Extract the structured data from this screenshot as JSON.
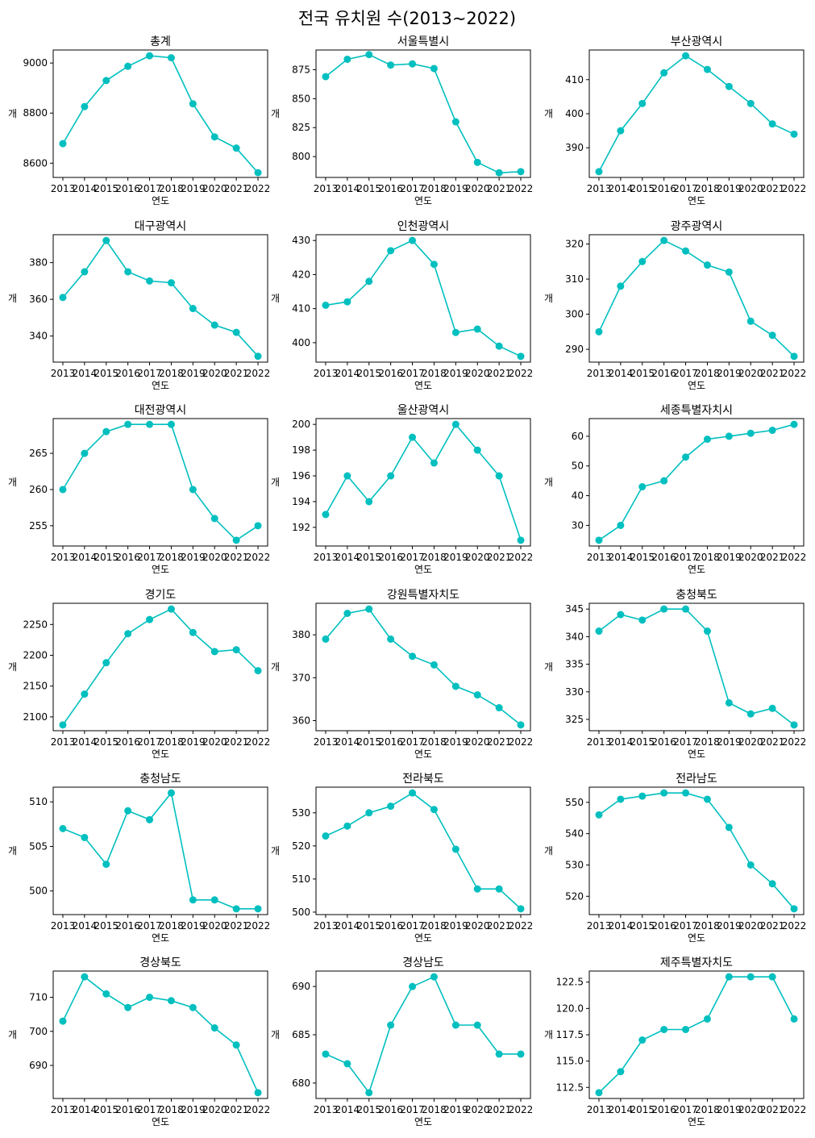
{
  "figure_title": "전국 유치원 수(2013~2022)",
  "colors": {
    "line": "#00BFBF",
    "frame": "#000000",
    "background": "#ffffff"
  },
  "chart_data": [
    {
      "type": "line",
      "title": "총계",
      "xlabel": "연도",
      "ylabel": "개",
      "x": [
        "2013",
        "2014",
        "2015",
        "2016",
        "2017",
        "2018",
        "2019",
        "2020",
        "2021",
        "2022"
      ],
      "values": [
        8678,
        8826,
        8930,
        8987,
        9029,
        9021,
        8837,
        8705,
        8660,
        8562
      ],
      "ylim": [
        8543,
        9052
      ],
      "yticks": [
        8600,
        8800,
        9000
      ],
      "grid": false,
      "legend": "none"
    },
    {
      "type": "line",
      "title": "서울특별시",
      "xlabel": "연도",
      "ylabel": "개",
      "x": [
        "2013",
        "2014",
        "2015",
        "2016",
        "2017",
        "2018",
        "2019",
        "2020",
        "2021",
        "2022"
      ],
      "values": [
        869,
        884,
        888,
        879,
        880,
        876,
        830,
        795,
        786,
        787
      ],
      "ylim": [
        782,
        892
      ],
      "yticks": [
        800,
        825,
        850,
        875
      ],
      "grid": false,
      "legend": "none"
    },
    {
      "type": "line",
      "title": "부산광역시",
      "xlabel": "연도",
      "ylabel": "개",
      "x": [
        "2013",
        "2014",
        "2015",
        "2016",
        "2017",
        "2018",
        "2019",
        "2020",
        "2021",
        "2022"
      ],
      "values": [
        383,
        395,
        403,
        412,
        417,
        413,
        408,
        403,
        397,
        394
      ],
      "ylim": [
        381.3,
        418.7
      ],
      "yticks": [
        390,
        400,
        410
      ],
      "grid": false,
      "legend": "none"
    },
    {
      "type": "line",
      "title": "대구광역시",
      "xlabel": "연도",
      "ylabel": "개",
      "x": [
        "2013",
        "2014",
        "2015",
        "2016",
        "2017",
        "2018",
        "2019",
        "2020",
        "2021",
        "2022"
      ],
      "values": [
        361,
        375,
        392,
        375,
        370,
        369,
        355,
        346,
        342,
        329
      ],
      "ylim": [
        325.8,
        395.2
      ],
      "yticks": [
        340,
        360,
        380
      ],
      "grid": false,
      "legend": "none"
    },
    {
      "type": "line",
      "title": "인천광역시",
      "xlabel": "연도",
      "ylabel": "개",
      "x": [
        "2013",
        "2014",
        "2015",
        "2016",
        "2017",
        "2018",
        "2019",
        "2020",
        "2021",
        "2022"
      ],
      "values": [
        411,
        412,
        418,
        427,
        430,
        423,
        403,
        404,
        399,
        396
      ],
      "ylim": [
        394.3,
        431.7
      ],
      "yticks": [
        400,
        410,
        420,
        430
      ],
      "grid": false,
      "legend": "none"
    },
    {
      "type": "line",
      "title": "광주광역시",
      "xlabel": "연도",
      "ylabel": "개",
      "x": [
        "2013",
        "2014",
        "2015",
        "2016",
        "2017",
        "2018",
        "2019",
        "2020",
        "2021",
        "2022"
      ],
      "values": [
        295,
        308,
        315,
        321,
        318,
        314,
        312,
        298,
        294,
        288
      ],
      "ylim": [
        286.35,
        322.65
      ],
      "yticks": [
        290,
        300,
        310,
        320
      ],
      "grid": false,
      "legend": "none"
    },
    {
      "type": "line",
      "title": "대전광역시",
      "xlabel": "연도",
      "ylabel": "개",
      "x": [
        "2013",
        "2014",
        "2015",
        "2016",
        "2017",
        "2018",
        "2019",
        "2020",
        "2021",
        "2022"
      ],
      "values": [
        260,
        265,
        268,
        269,
        269,
        269,
        260,
        256,
        253,
        255
      ],
      "ylim": [
        252.2,
        269.8
      ],
      "yticks": [
        255,
        260,
        265
      ],
      "grid": false,
      "legend": "none"
    },
    {
      "type": "line",
      "title": "울산광역시",
      "xlabel": "연도",
      "ylabel": "개",
      "x": [
        "2013",
        "2014",
        "2015",
        "2016",
        "2017",
        "2018",
        "2019",
        "2020",
        "2021",
        "2022"
      ],
      "values": [
        193,
        196,
        194,
        196,
        199,
        197,
        200,
        198,
        196,
        191
      ],
      "ylim": [
        190.55,
        200.45
      ],
      "yticks": [
        192,
        194,
        196,
        198,
        200
      ],
      "grid": false,
      "legend": "none"
    },
    {
      "type": "line",
      "title": "세종특별자치시",
      "xlabel": "연도",
      "ylabel": "개",
      "x": [
        "2013",
        "2014",
        "2015",
        "2016",
        "2017",
        "2018",
        "2019",
        "2020",
        "2021",
        "2022"
      ],
      "values": [
        25,
        30,
        43,
        45,
        53,
        59,
        60,
        61,
        62,
        64
      ],
      "ylim": [
        23.05,
        65.95
      ],
      "yticks": [
        30,
        40,
        50,
        60
      ],
      "grid": false,
      "legend": "none"
    },
    {
      "type": "line",
      "title": "경기도",
      "xlabel": "연도",
      "ylabel": "개",
      "x": [
        "2013",
        "2014",
        "2015",
        "2016",
        "2017",
        "2018",
        "2019",
        "2020",
        "2021",
        "2022"
      ],
      "values": [
        2087,
        2137,
        2188,
        2235,
        2258,
        2275,
        2237,
        2206,
        2209,
        2175
      ],
      "ylim": [
        2077.6,
        2284.4
      ],
      "yticks": [
        2100,
        2150,
        2200,
        2250
      ],
      "grid": false,
      "legend": "none"
    },
    {
      "type": "line",
      "title": "강원특별자치도",
      "xlabel": "연도",
      "ylabel": "개",
      "x": [
        "2013",
        "2014",
        "2015",
        "2016",
        "2017",
        "2018",
        "2019",
        "2020",
        "2021",
        "2022"
      ],
      "values": [
        379,
        385,
        386,
        379,
        375,
        373,
        368,
        366,
        363,
        359
      ],
      "ylim": [
        357.65,
        387.35
      ],
      "yticks": [
        360,
        370,
        380
      ],
      "grid": false,
      "legend": "none"
    },
    {
      "type": "line",
      "title": "충청북도",
      "xlabel": "연도",
      "ylabel": "개",
      "x": [
        "2013",
        "2014",
        "2015",
        "2016",
        "2017",
        "2018",
        "2019",
        "2020",
        "2021",
        "2022"
      ],
      "values": [
        341,
        344,
        343,
        345,
        345,
        341,
        328,
        326,
        327,
        324
      ],
      "ylim": [
        322.95,
        346.05
      ],
      "yticks": [
        325,
        330,
        335,
        340,
        345
      ],
      "grid": false,
      "legend": "none"
    },
    {
      "type": "line",
      "title": "충청남도",
      "xlabel": "연도",
      "ylabel": "개",
      "x": [
        "2013",
        "2014",
        "2015",
        "2016",
        "2017",
        "2018",
        "2019",
        "2020",
        "2021",
        "2022"
      ],
      "values": [
        507,
        506,
        503,
        509,
        508,
        511,
        499,
        499,
        498,
        498
      ],
      "ylim": [
        497.35,
        511.65
      ],
      "yticks": [
        500,
        505,
        510
      ],
      "grid": false,
      "legend": "none"
    },
    {
      "type": "line",
      "title": "전라북도",
      "xlabel": "연도",
      "ylabel": "개",
      "x": [
        "2013",
        "2014",
        "2015",
        "2016",
        "2017",
        "2018",
        "2019",
        "2020",
        "2021",
        "2022"
      ],
      "values": [
        523,
        526,
        530,
        532,
        536,
        531,
        519,
        507,
        507,
        501
      ],
      "ylim": [
        499.25,
        537.75
      ],
      "yticks": [
        500,
        510,
        520,
        530
      ],
      "grid": false,
      "legend": "none"
    },
    {
      "type": "line",
      "title": "전라남도",
      "xlabel": "연도",
      "ylabel": "개",
      "x": [
        "2013",
        "2014",
        "2015",
        "2016",
        "2017",
        "2018",
        "2019",
        "2020",
        "2021",
        "2022"
      ],
      "values": [
        546,
        551,
        552,
        553,
        553,
        551,
        542,
        530,
        524,
        516
      ],
      "ylim": [
        514.15,
        554.85
      ],
      "yticks": [
        520,
        530,
        540,
        550
      ],
      "grid": false,
      "legend": "none"
    },
    {
      "type": "line",
      "title": "경상북도",
      "xlabel": "연도",
      "ylabel": "개",
      "x": [
        "2013",
        "2014",
        "2015",
        "2016",
        "2017",
        "2018",
        "2019",
        "2020",
        "2021",
        "2022"
      ],
      "values": [
        703,
        716,
        711,
        707,
        710,
        709,
        707,
        701,
        696,
        682
      ],
      "ylim": [
        680.3,
        717.7
      ],
      "yticks": [
        690,
        700,
        710
      ],
      "grid": false,
      "legend": "none"
    },
    {
      "type": "line",
      "title": "경상남도",
      "xlabel": "연도",
      "ylabel": "개",
      "x": [
        "2013",
        "2014",
        "2015",
        "2016",
        "2017",
        "2018",
        "2019",
        "2020",
        "2021",
        "2022"
      ],
      "values": [
        683,
        682,
        679,
        686,
        690,
        691,
        686,
        686,
        683,
        683
      ],
      "ylim": [
        678.4,
        691.6
      ],
      "yticks": [
        680,
        685,
        690
      ],
      "grid": false,
      "legend": "none"
    },
    {
      "type": "line",
      "title": "제주특별자치도",
      "xlabel": "연도",
      "ylabel": "개",
      "x": [
        "2013",
        "2014",
        "2015",
        "2016",
        "2017",
        "2018",
        "2019",
        "2020",
        "2021",
        "2022"
      ],
      "values": [
        112,
        114,
        117,
        118,
        118,
        119,
        123,
        123,
        123,
        119
      ],
      "ylim": [
        111.45,
        123.55
      ],
      "yticks": [
        112.5,
        115.0,
        117.5,
        120.0,
        122.5
      ],
      "ytick_labels": [
        "112.5",
        "115.0",
        "117.5",
        "120.0",
        "122.5"
      ],
      "grid": false,
      "legend": "none"
    }
  ]
}
